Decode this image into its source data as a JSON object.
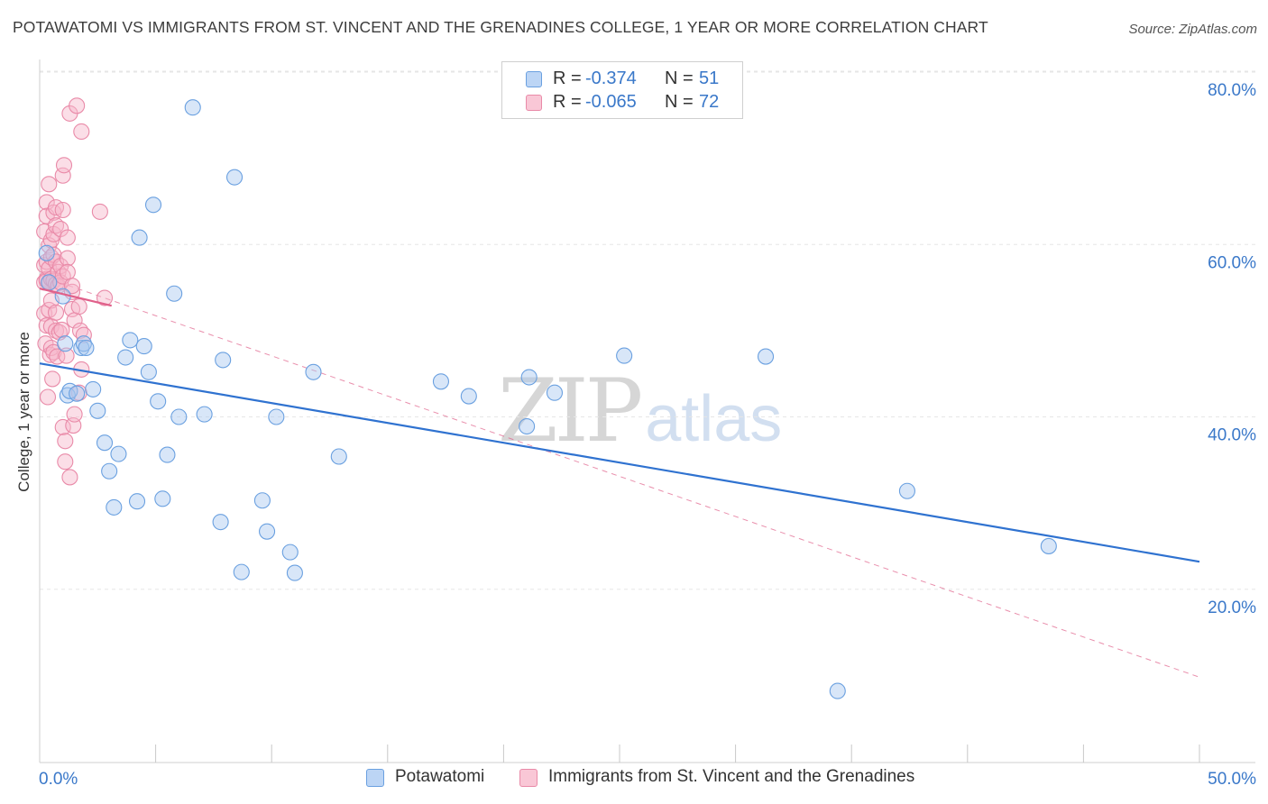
{
  "title": "POTAWATOMI VS IMMIGRANTS FROM ST. VINCENT AND THE GRENADINES COLLEGE, 1 YEAR OR MORE CORRELATION CHART",
  "source": "Source: ZipAtlas.com",
  "watermark": {
    "zip": "ZIP",
    "atlas": "atlas"
  },
  "colors": {
    "potawatomi_fill": "#a9c8f0",
    "potawatomi_stroke": "#6aa0e0",
    "potawatomi_line": "#2f72d0",
    "svg_fill": "#f6b6ca",
    "svg_stroke": "#e98aa8",
    "svg_line": "#e0608a",
    "grid": "#e6e6e6",
    "tick_text": "#3a78c9"
  },
  "stats": [
    {
      "r_label": "R =",
      "r_value": "-0.374",
      "n_label": "N =",
      "n_value": "51"
    },
    {
      "r_label": "R =",
      "r_value": "-0.065",
      "n_label": "N =",
      "n_value": "72"
    }
  ],
  "legend": [
    {
      "label": "Potawatomi"
    },
    {
      "label": "Immigrants from St. Vincent and the Grenadines"
    }
  ],
  "chart_data": {
    "type": "scatter",
    "title": "POTAWATOMI VS IMMIGRANTS FROM ST. VINCENT AND THE GRENADINES COLLEGE, 1 YEAR OR MORE CORRELATION CHART",
    "xlabel": "",
    "ylabel": "College, 1 year or more",
    "xlim": [
      0,
      50
    ],
    "ylim": [
      0,
      82
    ],
    "x_ticks": [
      "0.0%",
      "50.0%"
    ],
    "y_ticks": [
      {
        "value": 20,
        "label": "20.0%"
      },
      {
        "value": 40,
        "label": "40.0%"
      },
      {
        "value": 60,
        "label": "60.0%"
      },
      {
        "value": 80,
        "label": "80.0%"
      }
    ],
    "grid": true,
    "legend_position": "bottom",
    "series": [
      {
        "name": "Potawatomi",
        "points": [
          [
            0.3,
            59.0
          ],
          [
            1.0,
            54.0
          ],
          [
            1.1,
            48.5
          ],
          [
            1.2,
            42.5
          ],
          [
            1.3,
            43.0
          ],
          [
            1.6,
            42.7
          ],
          [
            1.8,
            48.0
          ],
          [
            1.9,
            48.5
          ],
          [
            2.0,
            48.0
          ],
          [
            2.3,
            43.2
          ],
          [
            2.5,
            40.7
          ],
          [
            2.8,
            37.0
          ],
          [
            3.0,
            33.7
          ],
          [
            3.2,
            29.5
          ],
          [
            3.4,
            35.7
          ],
          [
            3.7,
            46.9
          ],
          [
            3.9,
            48.9
          ],
          [
            4.2,
            30.2
          ],
          [
            4.3,
            60.8
          ],
          [
            4.5,
            48.2
          ],
          [
            4.7,
            45.2
          ],
          [
            4.9,
            64.6
          ],
          [
            5.1,
            41.8
          ],
          [
            5.3,
            30.5
          ],
          [
            5.5,
            35.6
          ],
          [
            5.8,
            54.3
          ],
          [
            6.0,
            40.0
          ],
          [
            6.6,
            75.9
          ],
          [
            7.1,
            40.3
          ],
          [
            7.8,
            27.8
          ],
          [
            7.9,
            46.6
          ],
          [
            8.4,
            67.8
          ],
          [
            8.7,
            22.0
          ],
          [
            9.6,
            30.3
          ],
          [
            9.8,
            26.7
          ],
          [
            10.2,
            40.0
          ],
          [
            10.8,
            24.3
          ],
          [
            11.0,
            21.9
          ],
          [
            11.8,
            45.2
          ],
          [
            12.9,
            35.4
          ],
          [
            17.3,
            44.1
          ],
          [
            18.5,
            42.4
          ],
          [
            21.0,
            38.9
          ],
          [
            21.1,
            44.6
          ],
          [
            22.2,
            42.8
          ],
          [
            25.2,
            47.1
          ],
          [
            31.3,
            47.0
          ],
          [
            34.4,
            8.2
          ],
          [
            37.4,
            31.4
          ],
          [
            43.5,
            25.0
          ],
          [
            0.4,
            55.6
          ]
        ],
        "trendline": {
          "x": [
            0,
            50
          ],
          "y": [
            46.2,
            23.2
          ]
        }
      },
      {
        "name": "Immigrants from St. Vincent and the Grenadines",
        "points": [
          [
            0.2,
            61.5
          ],
          [
            0.2,
            57.6
          ],
          [
            0.2,
            55.6
          ],
          [
            0.2,
            52.0
          ],
          [
            0.25,
            48.5
          ],
          [
            0.3,
            64.9
          ],
          [
            0.3,
            63.3
          ],
          [
            0.3,
            58.0
          ],
          [
            0.3,
            56.0
          ],
          [
            0.3,
            55.8
          ],
          [
            0.3,
            50.6
          ],
          [
            0.35,
            42.3
          ],
          [
            0.4,
            67.0
          ],
          [
            0.4,
            59.9
          ],
          [
            0.4,
            57.2
          ],
          [
            0.4,
            55.6
          ],
          [
            0.4,
            52.4
          ],
          [
            0.45,
            47.2
          ],
          [
            0.5,
            60.5
          ],
          [
            0.5,
            58.5
          ],
          [
            0.5,
            56.0
          ],
          [
            0.5,
            53.5
          ],
          [
            0.5,
            50.5
          ],
          [
            0.5,
            48.0
          ],
          [
            0.55,
            44.4
          ],
          [
            0.6,
            63.7
          ],
          [
            0.6,
            61.2
          ],
          [
            0.6,
            58.8
          ],
          [
            0.6,
            55.8
          ],
          [
            0.6,
            47.5
          ],
          [
            0.7,
            64.3
          ],
          [
            0.7,
            62.2
          ],
          [
            0.7,
            58.0
          ],
          [
            0.7,
            55.4
          ],
          [
            0.7,
            52.1
          ],
          [
            0.7,
            50.0
          ],
          [
            0.75,
            47.0
          ],
          [
            0.8,
            56.8
          ],
          [
            0.8,
            55.2
          ],
          [
            0.85,
            49.8
          ],
          [
            0.9,
            61.8
          ],
          [
            0.9,
            57.5
          ],
          [
            0.9,
            55.6
          ],
          [
            0.95,
            50.1
          ],
          [
            1.0,
            68.0
          ],
          [
            1.0,
            64.0
          ],
          [
            1.0,
            56.3
          ],
          [
            1.0,
            38.8
          ],
          [
            1.05,
            69.2
          ],
          [
            1.1,
            34.8
          ],
          [
            1.1,
            37.2
          ],
          [
            1.15,
            47.1
          ],
          [
            1.2,
            58.4
          ],
          [
            1.2,
            60.8
          ],
          [
            1.2,
            56.8
          ],
          [
            1.3,
            33.0
          ],
          [
            1.3,
            75.2
          ],
          [
            1.4,
            54.5
          ],
          [
            1.4,
            52.5
          ],
          [
            1.4,
            55.2
          ],
          [
            1.45,
            39.0
          ],
          [
            1.5,
            51.2
          ],
          [
            1.5,
            40.3
          ],
          [
            1.6,
            76.1
          ],
          [
            1.7,
            52.8
          ],
          [
            1.7,
            42.8
          ],
          [
            1.75,
            50.0
          ],
          [
            1.8,
            73.1
          ],
          [
            1.8,
            45.5
          ],
          [
            1.9,
            49.5
          ],
          [
            2.6,
            63.8
          ],
          [
            2.8,
            53.8
          ]
        ],
        "trendline_solid": {
          "x": [
            0,
            3.1
          ],
          "y": [
            54.9,
            52.9
          ]
        },
        "trendline_dashed": {
          "x": [
            0,
            50
          ],
          "y": [
            56.4,
            9.8
          ]
        }
      }
    ]
  }
}
